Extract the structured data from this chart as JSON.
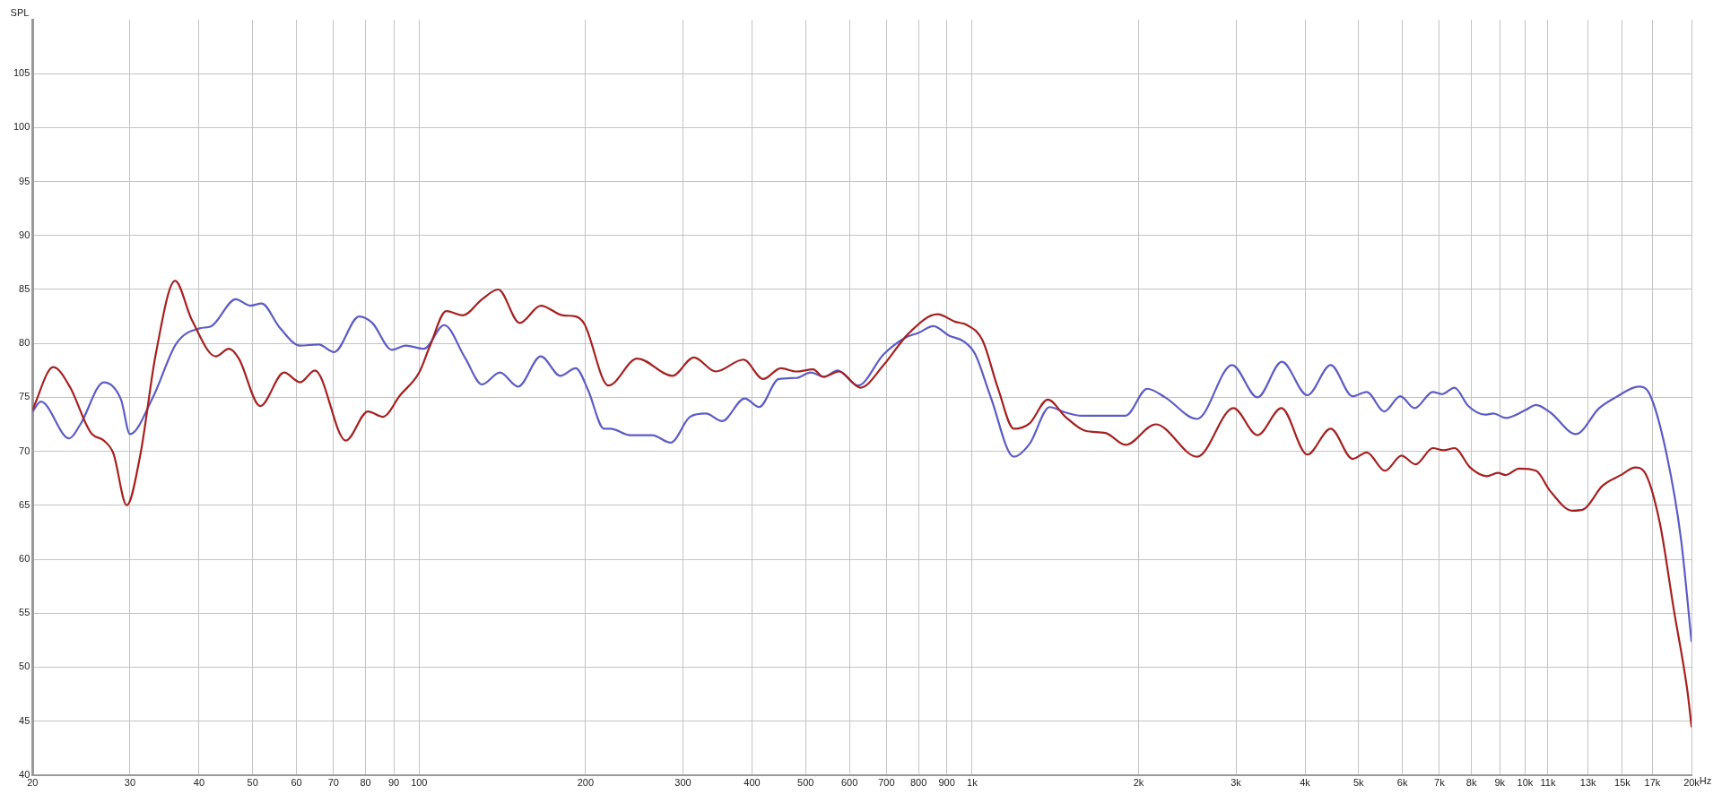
{
  "chart_data": {
    "type": "line",
    "ylabel": "SPL",
    "log": "x",
    "grid": true,
    "legend": false,
    "marker": "none",
    "line_style": "solid",
    "xlim": [
      20,
      20000
    ],
    "ylim": [
      40,
      110
    ],
    "xticks": [
      20,
      30,
      40,
      50,
      60,
      70,
      80,
      90,
      100,
      200,
      300,
      400,
      500,
      600,
      700,
      800,
      900,
      {
        "value": 1000,
        "label": "1k"
      },
      {
        "value": 2000,
        "label": "2k"
      },
      {
        "value": 3000,
        "label": "3k"
      },
      {
        "value": 4000,
        "label": "4k"
      },
      {
        "value": 5000,
        "label": "5k"
      },
      {
        "value": 6000,
        "label": "6k"
      },
      {
        "value": 7000,
        "label": "7k"
      },
      {
        "value": 8000,
        "label": "8k"
      },
      {
        "value": 9000,
        "label": "9k"
      },
      {
        "value": 10000,
        "label": "10k"
      },
      {
        "value": 11000,
        "label": "11k"
      },
      {
        "value": 13000,
        "label": "13k"
      },
      {
        "value": 15000,
        "label": "15k"
      },
      {
        "value": 17000,
        "label": "17k"
      },
      {
        "value": 20000,
        "label": "20k"
      }
    ],
    "xlabel": "Hz",
    "yticks": [
      40,
      45,
      50,
      55,
      60,
      65,
      70,
      75,
      80,
      85,
      90,
      95,
      100,
      105
    ],
    "series": [
      {
        "color": "#a52121",
        "x": [
          20,
          21.8,
          23.4,
          25,
          25.6,
          26.9,
          28,
          29.6,
          31.3,
          33.4,
          36.2,
          38.8,
          42.9,
          45.3,
          47.2,
          51.6,
          57,
          60.9,
          64.8,
          73.7,
          80.8,
          86,
          92.4,
          100,
          104.5,
          112,
          120,
          130,
          139,
          152,
          166,
          182,
          192,
          199,
          220,
          248,
          287,
          314,
          344,
          386,
          419,
          451,
          481,
          516,
          538,
          575,
          628,
          692,
          767,
          866,
          933,
          980,
          1044,
          1116,
          1190,
          1271,
          1371,
          1475,
          1603,
          1743,
          1895,
          2147,
          2553,
          2970,
          3282,
          3626,
          4038,
          4452,
          4877,
          5171,
          5583,
          5978,
          6338,
          6813,
          7124,
          7456,
          7955,
          8530,
          8930,
          9230,
          9750,
          10470,
          11110,
          12170,
          12730,
          13800,
          14900,
          15830,
          16430,
          17520,
          18570,
          19660,
          20000
        ],
        "values": [
          73.9,
          77.8,
          75.9,
          72.5,
          71.6,
          71,
          69.8,
          65,
          69.6,
          79,
          85.8,
          82.2,
          78.8,
          79.5,
          78.6,
          74.2,
          77.3,
          76.4,
          77.5,
          71,
          73.7,
          73.2,
          75.2,
          77.3,
          79.7,
          83,
          82.6,
          84.1,
          85,
          81.9,
          83.5,
          82.6,
          82.5,
          81.8,
          76.1,
          78.6,
          77,
          78.7,
          77.4,
          78.5,
          76.7,
          77.7,
          77.4,
          77.6,
          76.9,
          77.4,
          75.9,
          78,
          80.9,
          82.7,
          82,
          81.7,
          80.3,
          75.7,
          72.1,
          72.6,
          74.8,
          73.2,
          71.9,
          71.7,
          70.6,
          72.5,
          69.5,
          74,
          71.5,
          74,
          69.7,
          72.1,
          69.3,
          69.9,
          68.2,
          69.6,
          68.8,
          70.3,
          70.1,
          70.3,
          68.5,
          67.7,
          68,
          67.8,
          68.4,
          68.2,
          66.3,
          64.5,
          64.6,
          66.8,
          67.8,
          68.5,
          68.1,
          63.4,
          55.4,
          47.8,
          44.5
        ]
      },
      {
        "color": "#5c5cc4",
        "x": [
          20,
          20.7,
          23.3,
          24.4,
          26.9,
          28.9,
          30,
          33,
          36.4,
          40.1,
          42.1,
          46.6,
          49.5,
          51.9,
          55.9,
          60.9,
          65.8,
          70.2,
          77.9,
          82.3,
          89.3,
          94.5,
          102,
          111,
          121,
          130,
          140,
          151,
          166,
          180,
          192,
          202,
          216,
          222,
          241,
          264,
          285,
          309,
          330,
          353,
          388,
          412,
          447,
          481,
          511,
          540,
          571,
          622,
          692,
          755,
          801,
          851,
          910,
          965,
          1013,
          1081,
          1190,
          1271,
          1381,
          1475,
          1579,
          1686,
          1895,
          2074,
          2234,
          2553,
          2952,
          3282,
          3633,
          4038,
          4452,
          4877,
          5171,
          5566,
          5949,
          6315,
          6813,
          7073,
          7456,
          7895,
          8460,
          8769,
          9230,
          10000,
          10470,
          11110,
          12350,
          13620,
          14585,
          16060,
          16800,
          18000,
          19140,
          20000
        ],
        "values": [
          73.7,
          74.6,
          71.2,
          72.5,
          76.4,
          74.8,
          71.6,
          75,
          80,
          81.4,
          81.6,
          84.1,
          83.5,
          83.7,
          81.5,
          79.8,
          79.9,
          79.2,
          82.5,
          81.9,
          79.4,
          79.8,
          79.5,
          81.7,
          78.7,
          76.2,
          77.3,
          76,
          78.8,
          77,
          77.7,
          75.7,
          72.1,
          72.1,
          71.5,
          71.5,
          70.8,
          73.2,
          73.5,
          72.8,
          74.9,
          74.1,
          76.7,
          76.8,
          77.3,
          76.9,
          77.5,
          76.1,
          79,
          80.5,
          81,
          81.6,
          80.7,
          80.2,
          79,
          75,
          69.5,
          70.7,
          74.1,
          73.6,
          73.3,
          73.3,
          73.3,
          75.8,
          75,
          73,
          78,
          75,
          78.3,
          75.2,
          78,
          75.1,
          75.5,
          73.7,
          75.1,
          74,
          75.5,
          75.3,
          75.9,
          74.2,
          73.4,
          73.5,
          73.1,
          73.8,
          74.3,
          73.6,
          71.6,
          74,
          75,
          76,
          75.3,
          69.9,
          61.9,
          52.4
        ]
      }
    ]
  }
}
